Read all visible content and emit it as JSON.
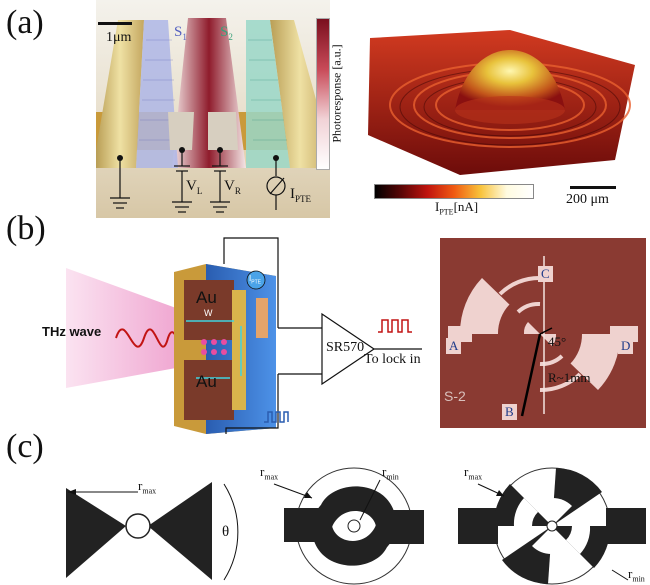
{
  "panels": {
    "a": {
      "label": "(a)",
      "scale_bar_left": "1μm",
      "strip_s1": "S",
      "strip_s1_sub": "1",
      "strip_s2": "S",
      "strip_s2_sub": "2",
      "vl": "V",
      "vl_sub": "L",
      "vr": "V",
      "vr_sub": "R",
      "ipte": "I",
      "ipte_sub": "PTE",
      "colorbar_label": "Photoresponse [a.u.]",
      "bottom_colorbar_label_main": "I",
      "bottom_colorbar_label_sub": "PTE",
      "bottom_colorbar_label_unit": "[nA]",
      "scale_bar_right": "200 μm"
    },
    "b": {
      "label": "(b)",
      "thz": "THz wave",
      "au_top": "Au",
      "au_bottom": "Au",
      "width_label": "W",
      "lockin_amp": "SR570",
      "to_lockin": "To lock in",
      "probe_label": "I",
      "probe_sub": "PTE",
      "micro_c": "C",
      "micro_a": "A",
      "micro_d": "D",
      "micro_b": "B",
      "angle": "45°",
      "radius": "R~1mm",
      "chip_id": "S-2"
    },
    "c": {
      "label": "(c)",
      "bowtie_rmax": "r",
      "bowtie_rmax_sub": "max",
      "bowtie_theta": "θ",
      "spiral_rmax": "r",
      "spiral_rmax_sub": "max",
      "spiral_rmin": "r",
      "spiral_rmin_sub": "min",
      "lp_rmax": "r",
      "lp_rmax_sub": "max",
      "lp_rmin": "r",
      "lp_rmin_sub": "min"
    }
  },
  "colors": {
    "gold": "#d9c27a",
    "substrate": "#c99a3a",
    "chip_bg": "#8a3a32",
    "thz_beam": "#f3b6d9",
    "blue_chip": "#3c7fd8"
  }
}
